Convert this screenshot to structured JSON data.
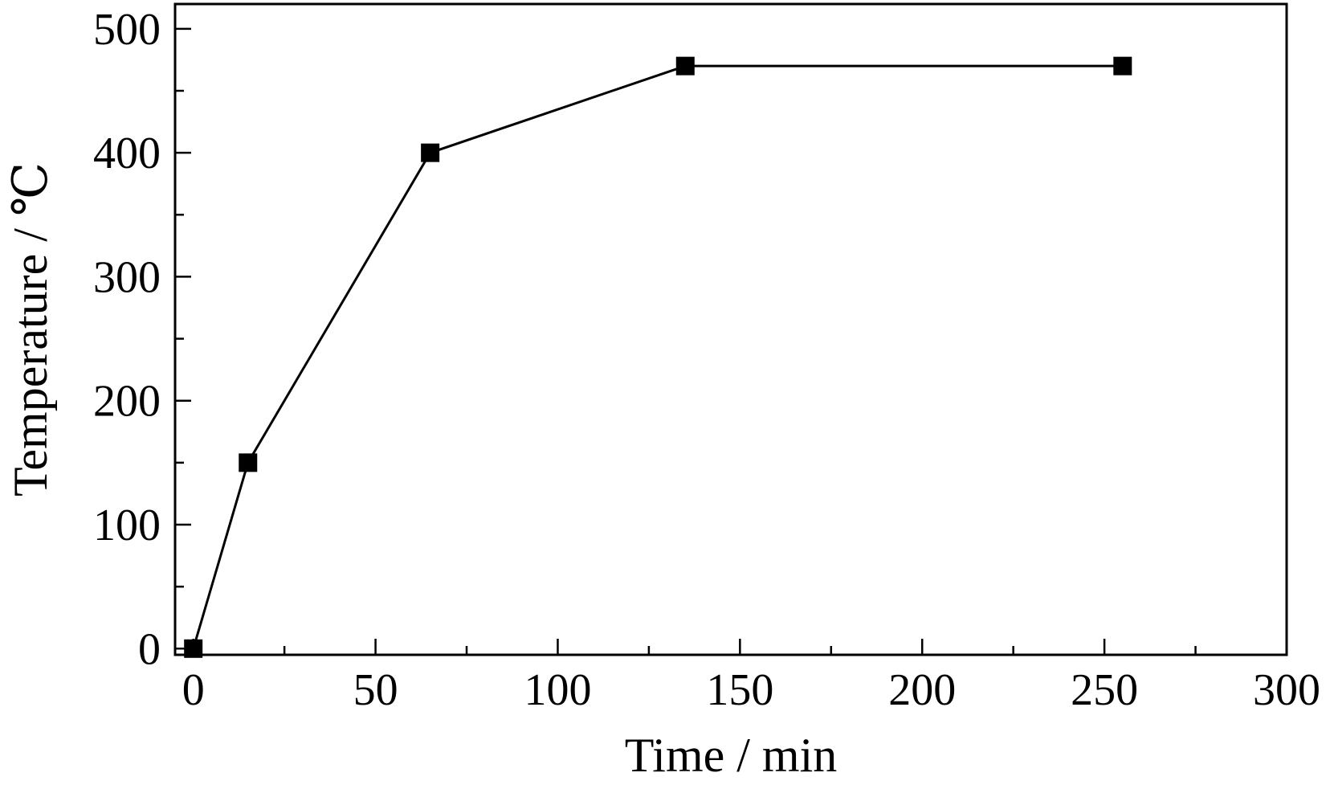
{
  "chart_data": {
    "type": "line",
    "title": "",
    "xlabel": "Time / min",
    "ylabel": "Temperature / ℃",
    "xlim": [
      -5,
      300
    ],
    "ylim": [
      -5,
      520
    ],
    "x_ticks": [
      0,
      50,
      100,
      150,
      200,
      250,
      300
    ],
    "x_minor_ticks": [
      25,
      75,
      125,
      175,
      225,
      275
    ],
    "y_ticks": [
      0,
      100,
      200,
      300,
      400,
      500
    ],
    "y_minor_ticks": [
      50,
      150,
      250,
      350,
      450
    ],
    "grid": false,
    "legend": "none",
    "series": [
      {
        "x": [
          0,
          15,
          65,
          135,
          255
        ],
        "y": [
          0,
          150,
          400,
          470,
          470
        ],
        "marker": "square",
        "color": "#000000"
      }
    ]
  }
}
